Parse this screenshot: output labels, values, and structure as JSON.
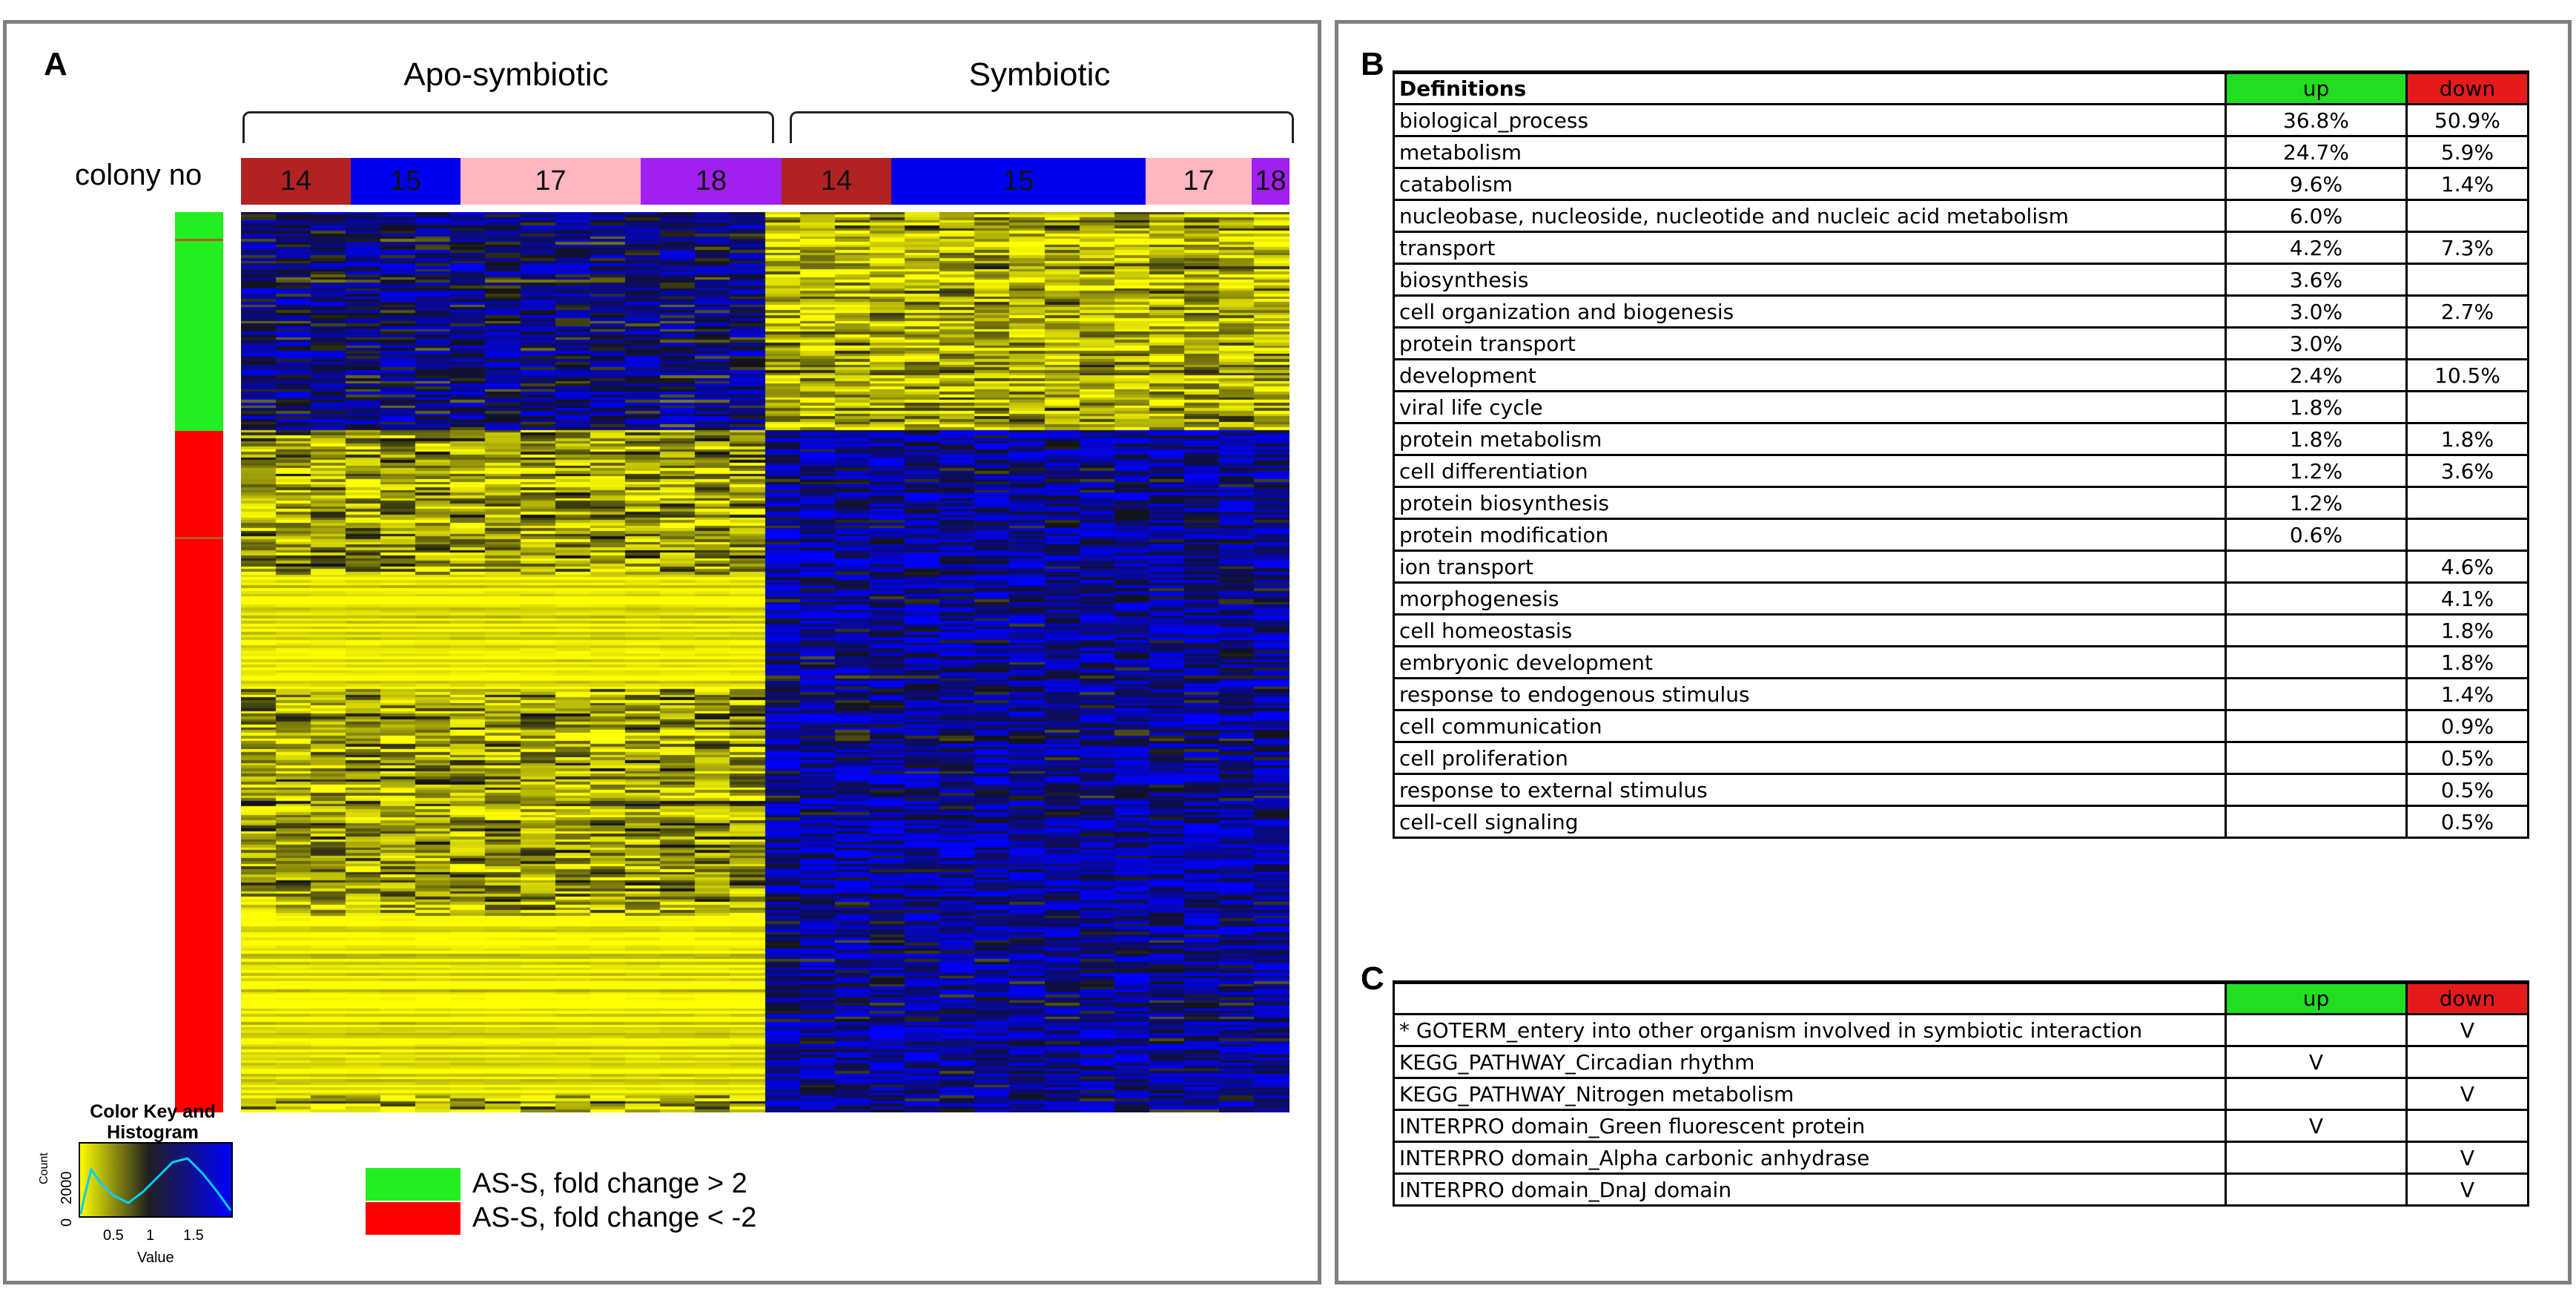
{
  "panel_a": {
    "label": "A",
    "group_left": "Apo-symbiotic",
    "group_right": "Symbiotic",
    "colony_label": "colony no",
    "colonies": [
      {
        "num": "14",
        "color": "#b22222"
      },
      {
        "num": "15",
        "color": "#0000ee"
      },
      {
        "num": "17",
        "color": "#ffb6c1"
      },
      {
        "num": "18",
        "color": "#a020f0"
      },
      {
        "num": "14",
        "color": "#b22222"
      },
      {
        "num": "15",
        "color": "#0000ee"
      },
      {
        "num": "17",
        "color": "#ffb6c1"
      },
      {
        "num": "18",
        "color": "#a020f0"
      }
    ],
    "color_key": {
      "title": "Color Key and Histogram",
      "y_axis": "Count",
      "y_tick_0": "0",
      "y_tick_max": "2000",
      "x_ticks": [
        "0.5",
        "1",
        "1.5"
      ],
      "x_label": "Value"
    },
    "legend": [
      {
        "label": "AS-S, fold change > 2",
        "color": "#22ee22"
      },
      {
        "label": "AS-S, fold change < -2",
        "color": "#ff0000"
      }
    ]
  },
  "panel_b": {
    "label": "B",
    "header": {
      "definition": "Definitions",
      "up": "up",
      "down": "down"
    },
    "rows": [
      {
        "term": "biological_process",
        "up": "36.8%",
        "down": "50.9%"
      },
      {
        "term": "metabolism",
        "up": "24.7%",
        "down": "5.9%"
      },
      {
        "term": "catabolism",
        "up": "9.6%",
        "down": "1.4%"
      },
      {
        "term": "nucleobase, nucleoside, nucleotide and nucleic acid metabolism",
        "up": "6.0%",
        "down": ""
      },
      {
        "term": "transport",
        "up": "4.2%",
        "down": "7.3%"
      },
      {
        "term": "biosynthesis",
        "up": "3.6%",
        "down": ""
      },
      {
        "term": "cell organization and biogenesis",
        "up": "3.0%",
        "down": "2.7%"
      },
      {
        "term": "protein transport",
        "up": "3.0%",
        "down": ""
      },
      {
        "term": "development",
        "up": "2.4%",
        "down": "10.5%"
      },
      {
        "term": "viral life cycle",
        "up": "1.8%",
        "down": ""
      },
      {
        "term": "protein metabolism",
        "up": "1.8%",
        "down": "1.8%"
      },
      {
        "term": "cell differentiation",
        "up": "1.2%",
        "down": "3.6%"
      },
      {
        "term": "protein biosynthesis",
        "up": "1.2%",
        "down": ""
      },
      {
        "term": "protein modification",
        "up": "0.6%",
        "down": ""
      },
      {
        "term": "ion transport",
        "up": "",
        "down": "4.6%"
      },
      {
        "term": "morphogenesis",
        "up": "",
        "down": "4.1%"
      },
      {
        "term": "cell homeostasis",
        "up": "",
        "down": "1.8%"
      },
      {
        "term": "embryonic development",
        "up": "",
        "down": "1.8%"
      },
      {
        "term": "response to endogenous stimulus",
        "up": "",
        "down": "1.4%"
      },
      {
        "term": "cell communication",
        "up": "",
        "down": "0.9%"
      },
      {
        "term": "cell proliferation",
        "up": "",
        "down": "0.5%"
      },
      {
        "term": "response to external stimulus",
        "up": "",
        "down": "0.5%"
      },
      {
        "term": "cell-cell signaling",
        "up": "",
        "down": "0.5%"
      }
    ]
  },
  "panel_c": {
    "label": "C",
    "header": {
      "definition": "",
      "up": "up",
      "down": "down"
    },
    "rows": [
      {
        "term": "* GOTERM_entery into other organism involved in symbiotic interaction",
        "up": "",
        "down": "V"
      },
      {
        "term": "KEGG_PATHWAY_Circadian rhythm",
        "up": "V",
        "down": ""
      },
      {
        "term": "KEGG_PATHWAY_Nitrogen metabolism",
        "up": "",
        "down": "V"
      },
      {
        "term": "INTERPRO domain_Green fluorescent protein",
        "up": "V",
        "down": ""
      },
      {
        "term": "INTERPRO domain_Alpha carbonic anhydrase",
        "up": "",
        "down": "V"
      },
      {
        "term": "INTERPRO domain_DnaJ domain",
        "up": "",
        "down": "V"
      }
    ]
  }
}
